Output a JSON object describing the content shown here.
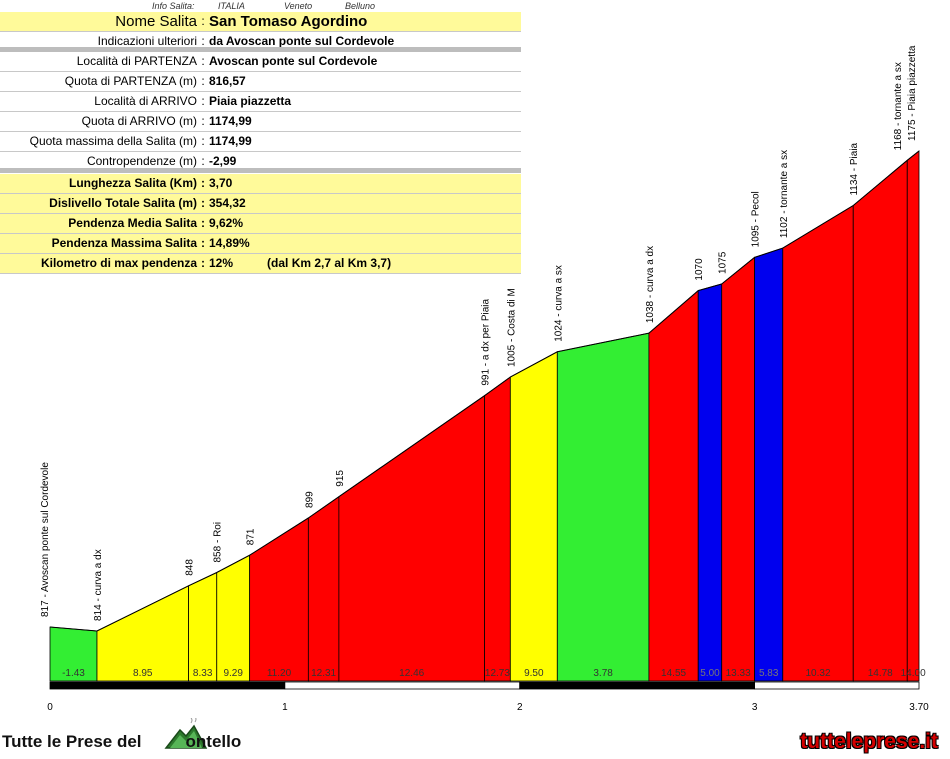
{
  "info": {
    "meta_label": "Info Salita:",
    "country": "ITALIA",
    "region": "Veneto",
    "province": "Belluno",
    "rows_top": [
      {
        "key": "Nome Salita",
        "value": "San Tomaso Agordino"
      },
      {
        "key": "Indicazioni ulteriori",
        "value": "da Avoscan ponte sul Cordevole"
      }
    ],
    "rows_mid": [
      {
        "key": "Località di PARTENZA",
        "value": "Avoscan ponte sul Cordevole"
      },
      {
        "key": "Quota di PARTENZA (m)",
        "value": "816,57"
      },
      {
        "key": "Località di ARRIVO",
        "value": "Piaia piazzetta"
      },
      {
        "key": "Quota di ARRIVO (m)",
        "value": "1174,99"
      },
      {
        "key": "Quota massima della Salita (m)",
        "value": "1174,99"
      },
      {
        "key": "Contropendenze (m)",
        "value": "-2,99"
      }
    ],
    "rows_stats": [
      {
        "key": "Lunghezza Salita (Km)",
        "value": "3,70"
      },
      {
        "key": "Dislivello Totale Salita (m)",
        "value": "354,32"
      },
      {
        "key": "Pendenza Media Salita",
        "value": "9,62%"
      },
      {
        "key": "Pendenza Massima Salita",
        "value": "14,89%"
      },
      {
        "key": "Kilometro di max pendenza",
        "value": "12%",
        "extra": "(dal Km 2,7 al Km 3,7)"
      }
    ]
  },
  "chart_data": {
    "type": "area",
    "xlim": [
      0,
      3.7
    ],
    "ylim": [
      750,
      1200
    ],
    "x_ticks": [
      "0",
      "1",
      "2",
      "3",
      "3.70"
    ],
    "x_tick_values": [
      0,
      1,
      2,
      3,
      3.7
    ],
    "points": [
      {
        "x": 0.0,
        "y": 817,
        "label": "817 - Avoscan ponte sul Cordevole"
      },
      {
        "x": 0.2,
        "y": 814,
        "label": "814 - curva a dx"
      },
      {
        "x": 0.59,
        "y": 848,
        "label": "848"
      },
      {
        "x": 0.71,
        "y": 858,
        "label": "858 - Roi"
      },
      {
        "x": 0.85,
        "y": 871,
        "label": "871"
      },
      {
        "x": 1.1,
        "y": 899,
        "label": "899"
      },
      {
        "x": 1.23,
        "y": 915,
        "label": "915"
      },
      {
        "x": 1.85,
        "y": 991,
        "label": "991 - a dx per Piaia"
      },
      {
        "x": 1.96,
        "y": 1005,
        "label": "1005 - Costa di M"
      },
      {
        "x": 2.16,
        "y": 1024,
        "label": "1024 - curva a sx"
      },
      {
        "x": 2.55,
        "y": 1038,
        "label": "1038 - curva a dx"
      },
      {
        "x": 2.76,
        "y": 1070,
        "label": "1070"
      },
      {
        "x": 2.86,
        "y": 1075,
        "label": "1075"
      },
      {
        "x": 3.0,
        "y": 1095,
        "label": "1095 - Pecol"
      },
      {
        "x": 3.12,
        "y": 1102,
        "label": "1102 - tornante a sx"
      },
      {
        "x": 3.42,
        "y": 1134,
        "label": "1134 - Piaia"
      },
      {
        "x": 3.65,
        "y": 1168,
        "label": "1168 - tornante a sx"
      },
      {
        "x": 3.7,
        "y": 1175,
        "label": "1175 - Piaia piazzetta"
      }
    ],
    "gradients": [
      "-1.43",
      "8.95",
      "8.33",
      "9.29",
      "11.20",
      "12.31",
      "12.46",
      "12.73",
      "9.50",
      "3.78",
      "14.55",
      "5.00",
      "13.33",
      "5.83",
      "10.32",
      "14.78",
      "14.00"
    ],
    "segment_colors": [
      "#33ee33",
      "#ffff00",
      "#ffff00",
      "#ffff00",
      "#ff0000",
      "#ff0000",
      "#ff0000",
      "#ff0000",
      "#ffff00",
      "#33ee33",
      "#ff0000",
      "#0000ee",
      "#ff0000",
      "#0000ee",
      "#ff0000",
      "#ff0000",
      "#ff0000"
    ]
  },
  "footer": {
    "left_text": "Tutte le Prese del",
    "left_text_end": "ontello",
    "right_text": "tutteleprese.it"
  }
}
